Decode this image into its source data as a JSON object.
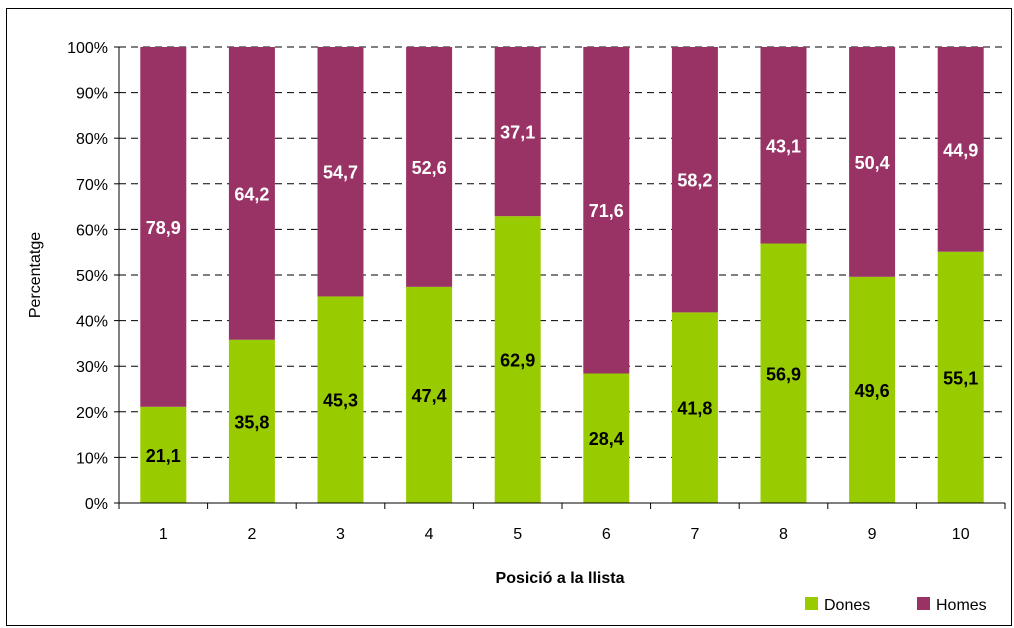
{
  "chart_data": {
    "type": "bar",
    "stacked": true,
    "percent": true,
    "categories": [
      "1",
      "2",
      "3",
      "4",
      "5",
      "6",
      "7",
      "8",
      "9",
      "10"
    ],
    "series": [
      {
        "name": "Dones",
        "color": "#99cc00",
        "values": [
          21.1,
          35.8,
          45.3,
          47.4,
          62.9,
          28.4,
          41.8,
          56.9,
          49.6,
          55.1
        ]
      },
      {
        "name": "Homes",
        "color": "#993366",
        "values": [
          78.9,
          64.2,
          54.7,
          52.6,
          37.1,
          71.6,
          58.2,
          43.1,
          50.4,
          44.9
        ]
      }
    ],
    "data_labels": {
      "Dones": [
        "21,1",
        "35,8",
        "45,3",
        "47,4",
        "62,9",
        "28,4",
        "41,8",
        "56,9",
        "49,6",
        "55,1"
      ],
      "Homes": [
        "78,9",
        "64,2",
        "54,7",
        "52,6",
        "37,1",
        "71,6",
        "58,2",
        "43,1",
        "50,4",
        "44,9"
      ]
    },
    "xlabel": "Posició a la llista",
    "ylabel": "Percentatge",
    "ylim": [
      0,
      100
    ],
    "yticks": [
      "0%",
      "10%",
      "20%",
      "30%",
      "40%",
      "50%",
      "60%",
      "70%",
      "80%",
      "90%",
      "100%"
    ],
    "grid": "dashed horizontal",
    "legend": "bottom-right"
  }
}
